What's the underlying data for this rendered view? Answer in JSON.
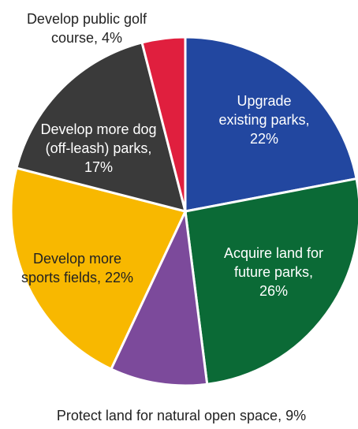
{
  "chart_data": {
    "type": "pie",
    "values": [
      22,
      26,
      9,
      22,
      17,
      4
    ],
    "value_labels": [
      "Upgrade existing parks, 22%",
      "Acquire land for future parks, 26%",
      "Protect land for natural open space, 9%",
      "Develop more sports fields, 22%",
      "Develop more dog (off-leash) parks, 17%",
      "Develop public golf course, 4%"
    ],
    "colors": [
      "#2247a0",
      "#0b6a36",
      "#7c4a9b",
      "#f8b800",
      "#3a3a3a",
      "#e01f3e"
    ]
  }
}
